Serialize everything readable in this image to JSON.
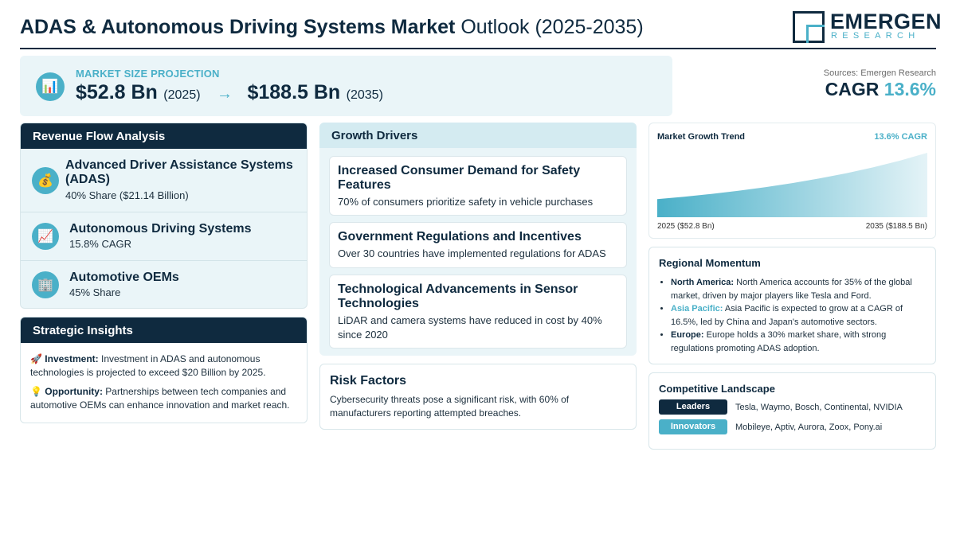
{
  "header": {
    "title_bold": "ADAS & Autonomous Driving Systems Market",
    "title_light": "Outlook (2025-2035)",
    "logo_word1": "EMERGEN",
    "logo_word2": "RESEARCH"
  },
  "projection": {
    "icon": "bar-chart-icon",
    "label": "MARKET SIZE PROJECTION",
    "start_value": "$52.8 Bn",
    "start_year": "(2025)",
    "arrow": "→",
    "end_value": "$188.5 Bn",
    "end_year": "(2035)"
  },
  "cagr": {
    "sources": "Sources: Emergen Research",
    "label": "CAGR",
    "value": "13.6%"
  },
  "revenue": {
    "heading": "Revenue Flow Analysis",
    "items": [
      {
        "icon": "money-bag-icon",
        "glyph": "💰",
        "title": "Advanced Driver Assistance Systems (ADAS)",
        "sub": "40% Share ($21.14 Billion)"
      },
      {
        "icon": "trend-chart-icon",
        "glyph": "📈",
        "title": "Autonomous Driving Systems",
        "sub": "15.8% CAGR"
      },
      {
        "icon": "office-building-icon",
        "glyph": "🏢",
        "title": "Automotive OEMs",
        "sub": "45% Share"
      }
    ]
  },
  "insights": {
    "heading": "Strategic Insights",
    "items": [
      {
        "icon": "rocket-icon",
        "glyph": "🚀",
        "label": "Investment:",
        "text": "Investment in ADAS and autonomous technologies is projected to exceed $20 Billion by 2025."
      },
      {
        "icon": "lightbulb-icon",
        "glyph": "💡",
        "label": "Opportunity:",
        "text": "Partnerships between tech companies and automotive OEMs can enhance innovation and market reach."
      }
    ]
  },
  "drivers": {
    "heading": "Growth Drivers",
    "items": [
      {
        "title": "Increased Consumer Demand for Safety Features",
        "desc": "70% of consumers prioritize safety in vehicle purchases"
      },
      {
        "title": "Government Regulations and Incentives",
        "desc": "Over 30 countries have implemented regulations for ADAS"
      },
      {
        "title": "Technological Advancements in Sensor Technologies",
        "desc": "LiDAR and camera systems have reduced in cost by 40% since 2020"
      }
    ]
  },
  "risk": {
    "heading": "Risk Factors",
    "text": "Cybersecurity threats pose a significant risk, with 60% of manufacturers reporting attempted breaches."
  },
  "trend": {
    "title": "Market Growth Trend",
    "cagr_label": "13.6% CAGR",
    "start_label": "2025 ($52.8 Bn)",
    "end_label": "2035 ($188.5 Bn)",
    "fill_color_start": "#4ab0c8",
    "fill_color_end": "#e4f3f7"
  },
  "chart_data": {
    "type": "area",
    "x": [
      2025,
      2035
    ],
    "values": [
      52.8,
      188.5
    ],
    "title": "Market Growth Trend",
    "xlabel": "",
    "ylabel": ""
  },
  "regional": {
    "heading": "Regional Momentum",
    "items": [
      {
        "label": "North America:",
        "accent": false,
        "text": "North America accounts for 35% of the global market, driven by major players like Tesla and Ford."
      },
      {
        "label": "Asia Pacific:",
        "accent": true,
        "text": "Asia Pacific is expected to grow at a CAGR of 16.5%, led by China and Japan's automotive sectors."
      },
      {
        "label": "Europe:",
        "accent": false,
        "text": "Europe holds a 30% market share, with strong regulations promoting ADAS adoption."
      }
    ]
  },
  "competitive": {
    "heading": "Competitive Landscape",
    "rows": [
      {
        "badge": "Leaders",
        "names": "Tesla, Waymo, Bosch, Continental, NVIDIA"
      },
      {
        "badge": "Innovators",
        "names": "Mobileye, Aptiv, Aurora, Zoox, Pony.ai"
      }
    ]
  },
  "colors": {
    "navy": "#0f2a3f",
    "accent": "#4ab0c8",
    "panel": "#eaf5f8"
  }
}
